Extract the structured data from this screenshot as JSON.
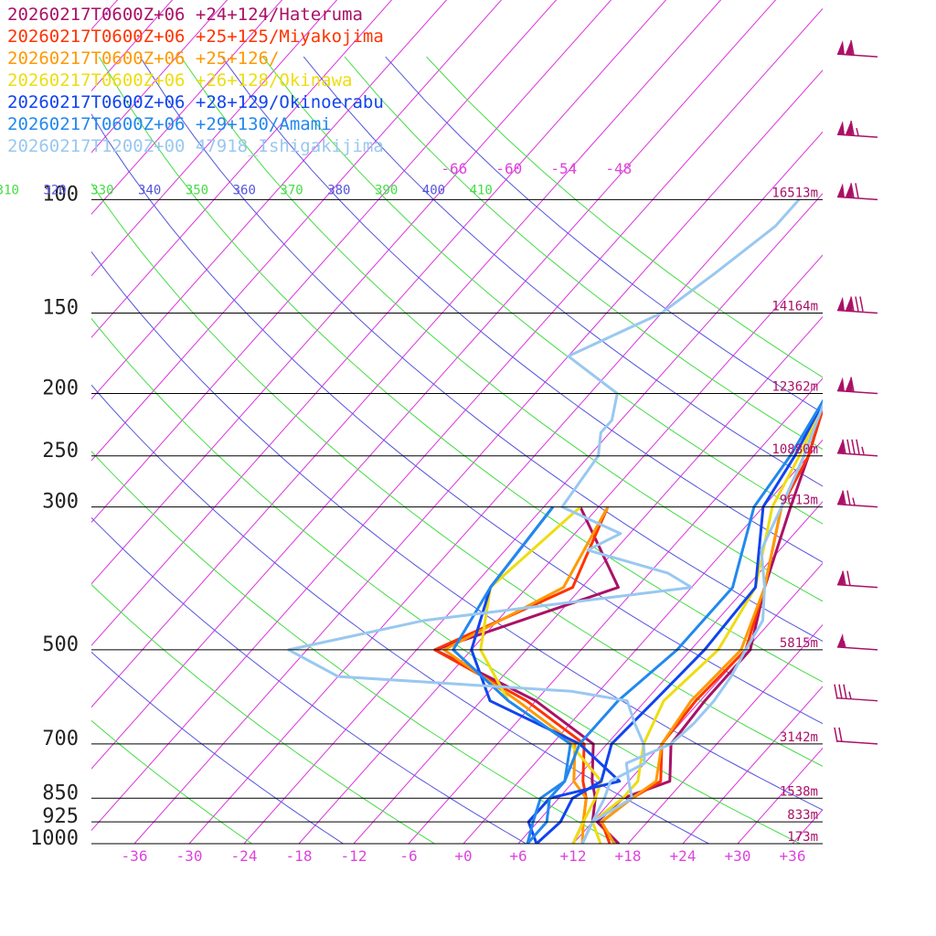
{
  "chart_data": {
    "type": "line",
    "title": "",
    "xlabel": "",
    "ylabel": "",
    "xlim": [
      -40,
      40
    ],
    "ylim": [
      1000,
      100
    ],
    "y_scale": "log",
    "grid": true,
    "legend_position": "top-left",
    "pressure_levels": [
      {
        "p": 100,
        "label": "100",
        "height": "16513m"
      },
      {
        "p": 150,
        "label": "150",
        "height": "14164m"
      },
      {
        "p": 200,
        "label": "200",
        "height": "12362m"
      },
      {
        "p": 250,
        "label": "250",
        "height": "10880m"
      },
      {
        "p": 300,
        "label": "300",
        "height": "9613m"
      },
      {
        "p": 500,
        "label": "500",
        "height": "5815m"
      },
      {
        "p": 700,
        "label": "700",
        "height": "3142m"
      },
      {
        "p": 850,
        "label": "850",
        "height": "1538m"
      },
      {
        "p": 925,
        "label": "925",
        "height": "833m"
      },
      {
        "p": 1000,
        "label": "1000",
        "height": "173m"
      }
    ],
    "x_ticks": [
      {
        "v": -36,
        "label": "-36"
      },
      {
        "v": -30,
        "label": "-30"
      },
      {
        "v": -24,
        "label": "-24"
      },
      {
        "v": -18,
        "label": "-18"
      },
      {
        "v": -12,
        "label": "-12"
      },
      {
        "v": -6,
        "label": "-6"
      },
      {
        "v": 0,
        "label": "+0"
      },
      {
        "v": 6,
        "label": "+6"
      },
      {
        "v": 12,
        "label": "+12"
      },
      {
        "v": 18,
        "label": "+18"
      },
      {
        "v": 24,
        "label": "+24"
      },
      {
        "v": 30,
        "label": "+30"
      },
      {
        "v": 36,
        "label": "+36"
      }
    ],
    "isotherm_labels": [
      {
        "v": -66,
        "label": "-66"
      },
      {
        "v": -60,
        "label": "-60"
      },
      {
        "v": -54,
        "label": "-54"
      },
      {
        "v": -48,
        "label": "-48"
      }
    ],
    "theta_labels": [
      {
        "v": 310,
        "label": "310",
        "color": "#44dd44"
      },
      {
        "v": 320,
        "label": "320",
        "color": "#5555dd"
      },
      {
        "v": 330,
        "label": "330",
        "color": "#44dd44"
      },
      {
        "v": 340,
        "label": "340",
        "color": "#5555dd"
      },
      {
        "v": 350,
        "label": "350",
        "color": "#44dd44"
      },
      {
        "v": 360,
        "label": "360",
        "color": "#5555dd"
      },
      {
        "v": 370,
        "label": "370",
        "color": "#44dd44"
      },
      {
        "v": 380,
        "label": "380",
        "color": "#5555dd"
      },
      {
        "v": 390,
        "label": "390",
        "color": "#44dd44"
      },
      {
        "v": 400,
        "label": "400",
        "color": "#5555dd"
      },
      {
        "v": 410,
        "label": "410",
        "color": "#44dd44"
      }
    ],
    "series": [
      {
        "name": "20260217T0600Z+06 +24+124/Hateruma",
        "color": "#aa1166",
        "temperature": [
          [
            1000,
            17
          ],
          [
            925,
            12.5
          ],
          [
            850,
            13
          ],
          [
            800,
            16.5
          ],
          [
            700,
            13
          ],
          [
            600,
            12.5
          ],
          [
            500,
            12.5
          ],
          [
            400,
            8
          ],
          [
            300,
            3
          ],
          [
            250,
            0
          ],
          [
            200,
            -4
          ],
          [
            150,
            -9
          ],
          [
            120,
            -12
          ],
          [
            100,
            -11
          ],
          [
            70,
            -1
          ],
          [
            50,
            19
          ]
        ],
        "dewpoint": [
          [
            1000,
            13
          ],
          [
            925,
            12
          ],
          [
            850,
            10
          ],
          [
            800,
            8
          ],
          [
            700,
            4.5
          ],
          [
            600,
            -6
          ],
          [
            500,
            -22
          ],
          [
            400,
            -8
          ],
          [
            300,
            -20
          ]
        ]
      },
      {
        "name": "20260217T0600Z+06 +25+125/Miyakojima",
        "color": "#ff3300",
        "temperature": [
          [
            1000,
            16
          ],
          [
            925,
            13
          ],
          [
            850,
            14
          ],
          [
            800,
            15.5
          ],
          [
            700,
            12
          ],
          [
            600,
            11.5
          ],
          [
            500,
            12
          ],
          [
            400,
            8
          ],
          [
            300,
            2
          ],
          [
            250,
            0
          ],
          [
            200,
            -4
          ],
          [
            150,
            -9
          ],
          [
            120,
            -12
          ],
          [
            100,
            -10.5
          ],
          [
            70,
            -1
          ],
          [
            50,
            19
          ]
        ],
        "dewpoint": [
          [
            1000,
            12
          ],
          [
            925,
            11
          ],
          [
            850,
            9
          ],
          [
            800,
            7
          ],
          [
            700,
            3.5
          ],
          [
            600,
            -7
          ],
          [
            500,
            -22
          ],
          [
            400,
            -13
          ],
          [
            300,
            -17
          ]
        ]
      },
      {
        "name": "20260217T0600Z+06 +25+126/",
        "color": "#ff9900",
        "temperature": [
          [
            1000,
            16.5
          ],
          [
            925,
            13
          ],
          [
            850,
            14
          ],
          [
            800,
            15
          ],
          [
            700,
            12
          ],
          [
            600,
            11
          ],
          [
            500,
            11.5
          ],
          [
            400,
            8
          ],
          [
            300,
            2
          ],
          [
            250,
            -0.5
          ],
          [
            200,
            -4
          ],
          [
            150,
            -9
          ],
          [
            120,
            -12
          ],
          [
            100,
            -10
          ],
          [
            70,
            -0.5
          ],
          [
            50,
            19.5
          ]
        ],
        "dewpoint": [
          [
            1000,
            13
          ],
          [
            925,
            11
          ],
          [
            850,
            9
          ],
          [
            800,
            6
          ],
          [
            700,
            2.5
          ],
          [
            600,
            -8
          ],
          [
            500,
            -21
          ],
          [
            400,
            -14
          ],
          [
            300,
            -17
          ]
        ]
      },
      {
        "name": "20260217T0600Z+06 +26+128/Okinawa",
        "color": "#eedd11",
        "temperature": [
          [
            1000,
            15
          ],
          [
            925,
            12
          ],
          [
            850,
            13
          ],
          [
            800,
            13
          ],
          [
            700,
            10
          ],
          [
            600,
            8
          ],
          [
            500,
            9
          ],
          [
            400,
            7
          ],
          [
            300,
            1
          ],
          [
            250,
            -1
          ],
          [
            200,
            -4
          ],
          [
            150,
            -9
          ],
          [
            120,
            -11.5
          ],
          [
            100,
            -9
          ],
          [
            70,
            0
          ],
          [
            50,
            20
          ]
        ],
        "dewpoint": [
          [
            1000,
            12
          ],
          [
            925,
            11
          ],
          [
            850,
            10
          ],
          [
            800,
            9
          ],
          [
            700,
            2
          ],
          [
            600,
            -9
          ],
          [
            500,
            -17
          ],
          [
            400,
            -22
          ],
          [
            300,
            -20
          ]
        ]
      },
      {
        "name": "20260217T0600Z+06 +28+129/Okinoerabu",
        "color": "#1144ee",
        "temperature": [
          [
            1000,
            8
          ],
          [
            925,
            8.5
          ],
          [
            850,
            7.5
          ],
          [
            800,
            9
          ],
          [
            700,
            6.5
          ],
          [
            600,
            7
          ],
          [
            500,
            7.5
          ],
          [
            400,
            7
          ],
          [
            300,
            0
          ],
          [
            250,
            -1.5
          ],
          [
            200,
            -4
          ],
          [
            150,
            -9
          ],
          [
            120,
            -11.5
          ],
          [
            100,
            -8
          ],
          [
            70,
            1.5
          ],
          [
            50,
            21
          ]
        ],
        "dewpoint": [
          [
            1000,
            8
          ],
          [
            925,
            5
          ],
          [
            850,
            5
          ],
          [
            800,
            11
          ],
          [
            700,
            3
          ],
          [
            600,
            -11
          ],
          [
            500,
            -18
          ],
          [
            400,
            -22
          ],
          [
            300,
            -23
          ]
        ]
      },
      {
        "name": "20260217T0600Z+06 +29+130/Amami",
        "color": "#2288ee",
        "temperature": [
          [
            1000,
            7
          ],
          [
            925,
            7
          ],
          [
            850,
            5
          ],
          [
            800,
            5
          ],
          [
            700,
            3
          ],
          [
            600,
            3
          ],
          [
            500,
            4.5
          ],
          [
            400,
            4.5
          ],
          [
            300,
            -1
          ],
          [
            250,
            -2
          ],
          [
            200,
            -4
          ],
          [
            150,
            -8.5
          ],
          [
            120,
            -10.5
          ],
          [
            100,
            -5.5
          ],
          [
            70,
            3
          ],
          [
            50,
            22
          ]
        ],
        "dewpoint": [
          [
            1000,
            7
          ],
          [
            925,
            5.5
          ],
          [
            850,
            4
          ],
          [
            800,
            5
          ],
          [
            700,
            2
          ],
          [
            600,
            -9
          ],
          [
            500,
            -20
          ],
          [
            400,
            -22
          ],
          [
            300,
            -23
          ]
        ]
      },
      {
        "name": "20260217T1200Z+00 47918_Ishigakijima",
        "color": "#99c8f0",
        "temperature": [
          [
            1000,
            13
          ],
          [
            925,
            12
          ],
          [
            850,
            14
          ],
          [
            800,
            12
          ],
          [
            750,
            10
          ],
          [
            700,
            13
          ],
          [
            650,
            13.5
          ],
          [
            600,
            13.5
          ],
          [
            550,
            13
          ],
          [
            500,
            12
          ],
          [
            450,
            11
          ],
          [
            400,
            8
          ],
          [
            350,
            4
          ],
          [
            300,
            2
          ],
          [
            250,
            -0.5
          ],
          [
            200,
            -4
          ],
          [
            170,
            -6.5
          ],
          [
            150,
            -8
          ],
          [
            130,
            -9
          ],
          [
            120,
            -8.5
          ],
          [
            110,
            -11
          ],
          [
            100,
            -12
          ]
        ],
        "dewpoint": [
          [
            1000,
            13
          ],
          [
            925,
            12
          ],
          [
            850,
            11
          ],
          [
            800,
            10
          ],
          [
            750,
            12
          ],
          [
            700,
            10
          ],
          [
            650,
            7
          ],
          [
            600,
            4
          ],
          [
            580,
            -3
          ],
          [
            550,
            -30
          ],
          [
            500,
            -38
          ],
          [
            450,
            -26
          ],
          [
            400,
            0
          ],
          [
            380,
            -4
          ],
          [
            350,
            -15
          ],
          [
            330,
            -13
          ],
          [
            300,
            -22
          ],
          [
            250,
            -23
          ],
          [
            230,
            -25
          ],
          [
            220,
            -25
          ],
          [
            200,
            -27
          ],
          [
            175,
            -36
          ],
          [
            150,
            -30
          ],
          [
            130,
            -28
          ],
          [
            110,
            -26
          ],
          [
            100,
            -26
          ]
        ]
      }
    ],
    "wind_barbs": [
      {
        "p": 60,
        "speed": 110
      },
      {
        "p": 80,
        "speed": 115
      },
      {
        "p": 100,
        "speed": 120
      },
      {
        "p": 150,
        "speed": 130
      },
      {
        "p": 200,
        "speed": 110
      },
      {
        "p": 250,
        "speed": 95
      },
      {
        "p": 300,
        "speed": 75
      },
      {
        "p": 400,
        "speed": 70
      },
      {
        "p": 500,
        "speed": 55
      },
      {
        "p": 600,
        "speed": 35
      },
      {
        "p": 700,
        "speed": 20
      }
    ]
  }
}
